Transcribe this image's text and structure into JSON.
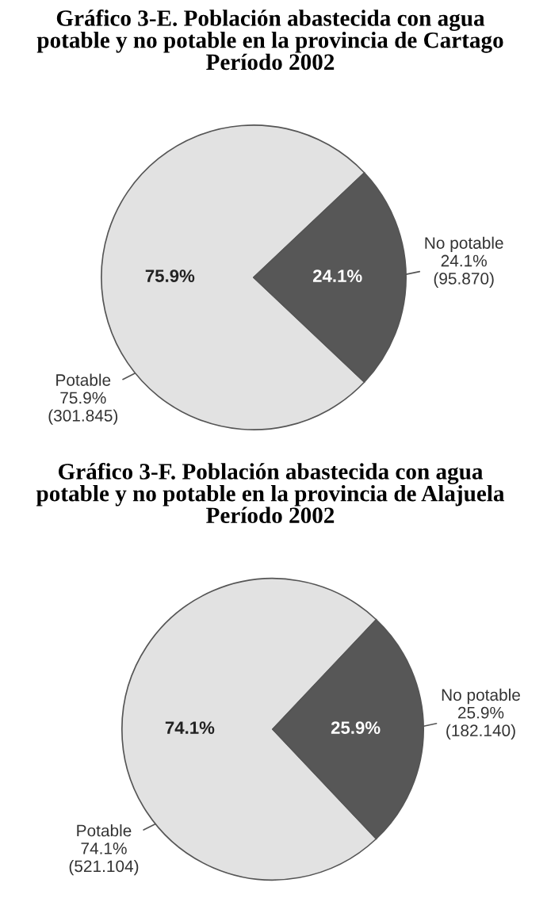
{
  "chart_data": [
    {
      "type": "pie",
      "title": "Gráfico 3-E. Población abastecida con agua\npotable y no potable en la provincia de Cartago\nPeríodo 2002",
      "categories": [
        "Potable",
        "No potable"
      ],
      "values": [
        75.9,
        24.1
      ],
      "colors": [
        "#e2e2e2",
        "#575757"
      ],
      "value_labels": [
        "75.9%",
        "24.1%"
      ],
      "annotations": [
        "(301.845)",
        "(95.870)"
      ]
    },
    {
      "type": "pie",
      "title": "Gráfico 3-F. Población abastecida con agua\npotable y no potable en la provincia de Alajuela\nPeríodo 2002",
      "categories": [
        "Potable",
        "No potable"
      ],
      "values": [
        74.1,
        25.9
      ],
      "colors": [
        "#e2e2e2",
        "#575757"
      ],
      "value_labels": [
        "74.1%",
        "25.9%"
      ],
      "annotations": [
        "(521.104)",
        "(182.140)"
      ]
    }
  ]
}
